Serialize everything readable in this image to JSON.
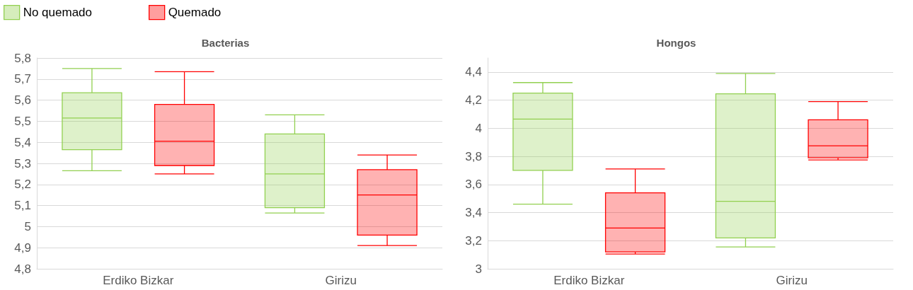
{
  "chart_data": [
    {
      "type": "box",
      "title": "Bacterias",
      "categories": [
        "Erdiko Bizkar",
        "Girizu"
      ],
      "ylim": [
        4.8,
        5.8
      ],
      "yticks": [
        {
          "value": 4.8,
          "label": "4,8"
        },
        {
          "value": 4.9,
          "label": "4,9"
        },
        {
          "value": 5,
          "label": "5"
        },
        {
          "value": 5.1,
          "label": "5,1"
        },
        {
          "value": 5.2,
          "label": "5,2"
        },
        {
          "value": 5.3,
          "label": "5,3"
        },
        {
          "value": 5.4,
          "label": "5,4"
        },
        {
          "value": 5.5,
          "label": "5,5"
        },
        {
          "value": 5.6,
          "label": "5,6"
        },
        {
          "value": 5.7,
          "label": "5,7"
        },
        {
          "value": 5.8,
          "label": "5,8"
        }
      ],
      "grid": "y",
      "legend": "top left",
      "series": [
        {
          "name": "No quemado",
          "color": "#92d050",
          "boxes": [
            {
              "low": 5.265,
              "q1": 5.365,
              "median": 5.515,
              "q3": 5.635,
              "high": 5.75
            },
            {
              "low": 5.065,
              "q1": 5.09,
              "median": 5.25,
              "q3": 5.44,
              "high": 5.53
            }
          ]
        },
        {
          "name": "Quemado",
          "color": "#ff0000",
          "boxes": [
            {
              "low": 5.25,
              "q1": 5.29,
              "median": 5.405,
              "q3": 5.58,
              "high": 5.735
            },
            {
              "low": 4.91,
              "q1": 4.96,
              "median": 5.15,
              "q3": 5.27,
              "high": 5.34
            }
          ]
        }
      ]
    },
    {
      "type": "box",
      "title": "Hongos",
      "categories": [
        "Erdiko Bizkar",
        "Girizu"
      ],
      "ylim": [
        3,
        4.5
      ],
      "yticks": [
        {
          "value": 3,
          "label": "3"
        },
        {
          "value": 3.2,
          "label": "3,2"
        },
        {
          "value": 3.4,
          "label": "3,4"
        },
        {
          "value": 3.6,
          "label": "3,6"
        },
        {
          "value": 3.8,
          "label": "3,8"
        },
        {
          "value": 4,
          "label": "4"
        },
        {
          "value": 4.2,
          "label": "4,2"
        },
        {
          "value": 4.4,
          "label": "4,4"
        }
      ],
      "grid": "y",
      "series": [
        {
          "color": "#92d050",
          "boxes": [
            {
              "low": 3.46,
              "q1": 3.7,
              "median": 4.065,
              "q3": 4.25,
              "high": 4.325
            },
            {
              "low": 3.155,
              "q1": 3.22,
              "median": 3.48,
              "q3": 4.245,
              "high": 4.39
            }
          ]
        },
        {
          "color": "#ff0000",
          "boxes": [
            {
              "low": 3.105,
              "q1": 3.12,
              "median": 3.29,
              "q3": 3.54,
              "high": 3.71
            },
            {
              "low": 3.775,
              "q1": 3.79,
              "median": 3.875,
              "q3": 4.06,
              "high": 4.19
            }
          ]
        }
      ]
    }
  ]
}
